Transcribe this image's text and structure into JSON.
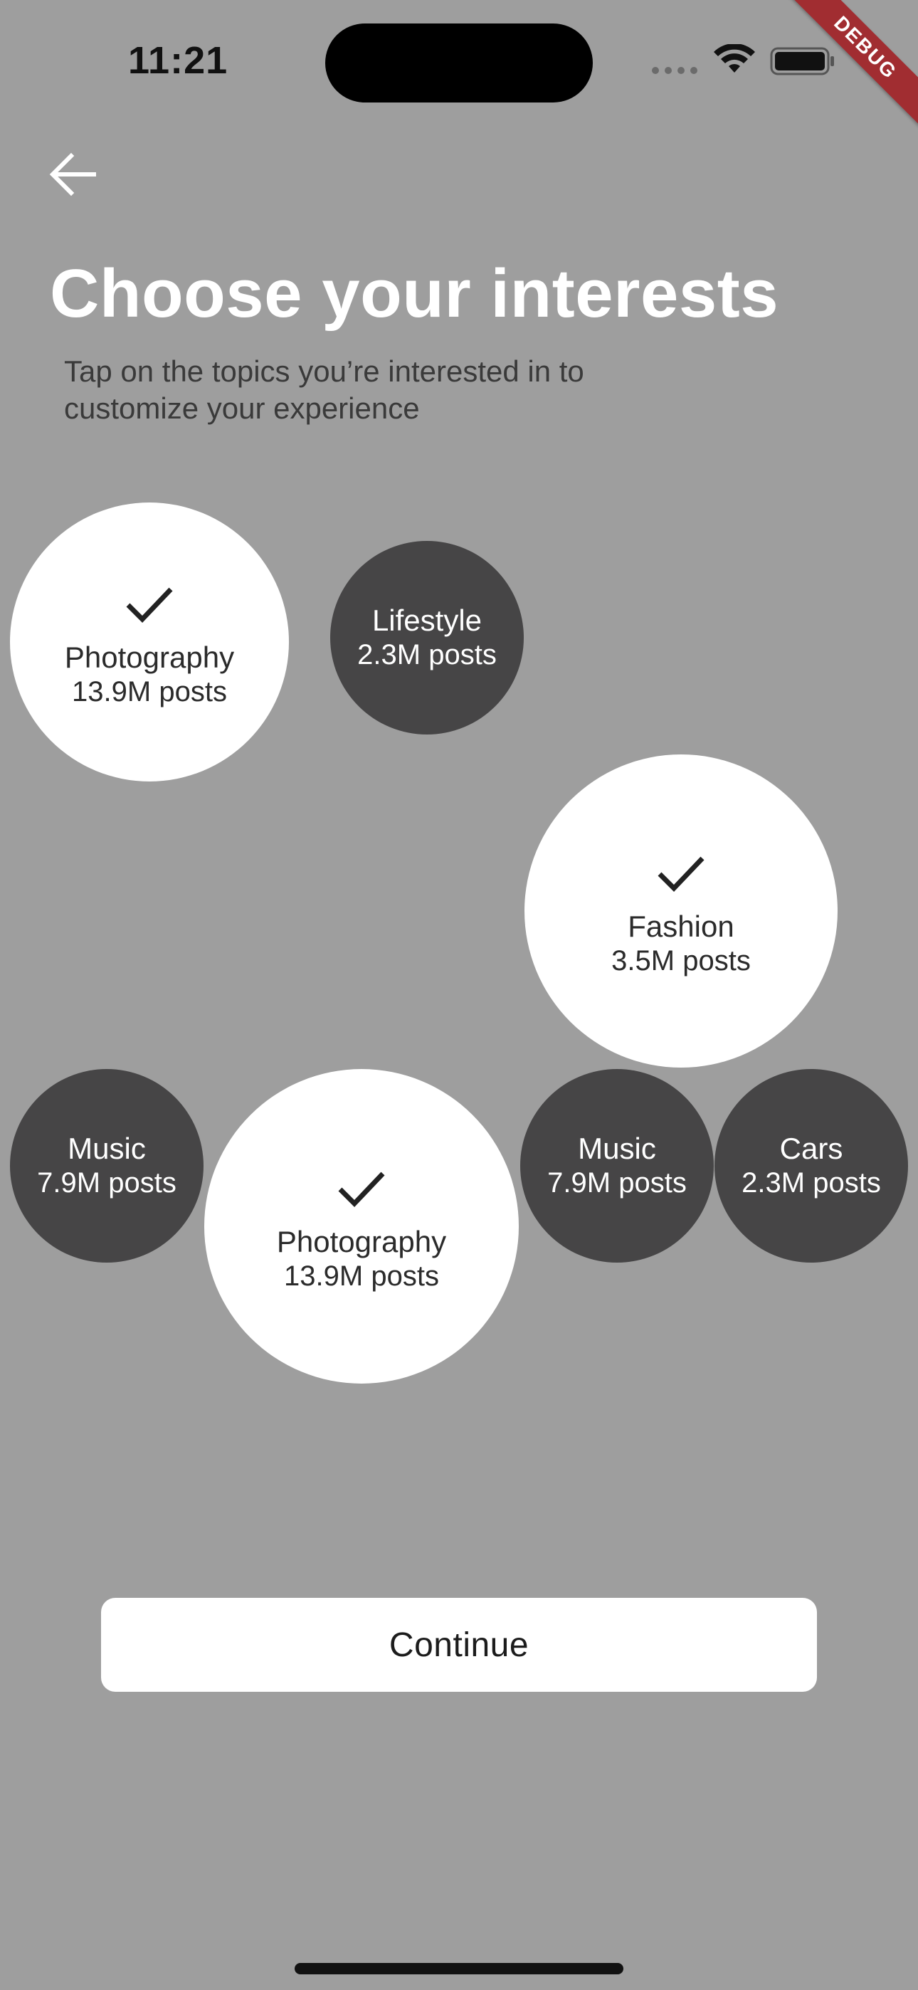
{
  "status_bar": {
    "time": "11:21",
    "debug_label": "DEBUG"
  },
  "header": {
    "title": "Choose your interests",
    "subtitle": "Tap on the topics you’re interested in to customize your experience"
  },
  "topics": [
    {
      "name": "Photography",
      "posts": "13.9M posts",
      "selected": true,
      "icon": "check-icon"
    },
    {
      "name": "Lifestyle",
      "posts": "2.3M posts",
      "selected": false
    },
    {
      "name": "Fashion",
      "posts": "3.5M posts",
      "selected": true,
      "icon": "check-icon"
    },
    {
      "name": "Music",
      "posts": "7.9M posts",
      "selected": false
    },
    {
      "name": "Photography",
      "posts": "13.9M posts",
      "selected": true,
      "icon": "check-icon"
    },
    {
      "name": "Music",
      "posts": "7.9M posts",
      "selected": false
    },
    {
      "name": "Cars",
      "posts": "2.3M posts",
      "selected": false
    }
  ],
  "actions": {
    "continue_label": "Continue"
  },
  "colors": {
    "background": "#9e9e9e",
    "selected_bubble": "#ffffff",
    "unselected_bubble": "#464546",
    "debug_ribbon": "#a12d31"
  }
}
